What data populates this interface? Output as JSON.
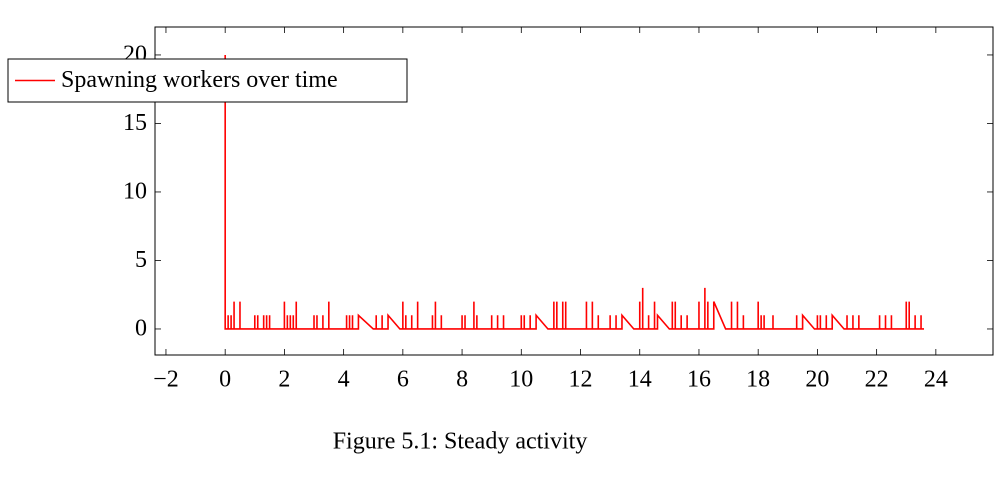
{
  "chart_data": {
    "type": "line",
    "caption": "Figure 5.1: Steady activity",
    "legend": "north west",
    "xlim": [
      -2.37,
      25.93
    ],
    "ylim": [
      -1.9,
      22.04
    ],
    "xticks": [
      {
        "value": -2,
        "label": "−2"
      },
      0,
      2,
      4,
      6,
      8,
      10,
      12,
      14,
      16,
      18,
      20,
      22,
      24
    ],
    "yticks": [
      0,
      5,
      10,
      15,
      20
    ],
    "x": [
      0,
      0,
      0.1,
      0.1,
      0.1,
      0.2,
      0.2,
      0.2,
      0.3,
      0.3,
      0.3,
      0.5,
      0.5,
      0.5,
      1,
      1,
      1,
      1.1,
      1.1,
      1.1,
      1.3,
      1.3,
      1.3,
      1.4,
      1.4,
      1.4,
      1.5,
      1.5,
      1.5,
      2,
      2,
      2,
      2.1,
      2.1,
      2.1,
      2.2,
      2.2,
      2.2,
      2.3,
      2.3,
      2.3,
      2.4,
      2.4,
      2.4,
      3,
      3,
      3,
      3.1,
      3.1,
      3.1,
      3.3,
      3.3,
      3.3,
      3.5,
      3.5,
      3.5,
      4.1,
      4.1,
      4.1,
      4.2,
      4.2,
      4.2,
      4.3,
      4.3,
      4.3,
      4.5,
      4.5,
      5.0,
      5.1,
      5.1,
      5.1,
      5.3,
      5.3,
      5.3,
      5.5,
      5.5,
      5.9,
      6,
      6,
      6,
      6.1,
      6.1,
      6.1,
      6.3,
      6.3,
      6.3,
      6.5,
      6.5,
      6.5,
      7,
      7,
      7,
      7.1,
      7.1,
      7.1,
      7.3,
      7.3,
      7.3,
      8,
      8,
      8,
      8.1,
      8.1,
      8.1,
      8.4,
      8.4,
      8.4,
      8.5,
      8.5,
      8.5,
      9,
      9,
      9,
      9.2,
      9.2,
      9.2,
      9.4,
      9.4,
      9.4,
      10,
      10,
      10,
      10.1,
      10.1,
      10.1,
      10.3,
      10.3,
      10.3,
      10.5,
      10.5,
      10.9,
      11.1,
      11.1,
      11.1,
      11.2,
      11.2,
      11.2,
      11.4,
      11.4,
      11.4,
      11.5,
      11.5,
      11.5,
      12.2,
      12.2,
      12.2,
      12.4,
      12.4,
      12.4,
      12.6,
      12.6,
      12.6,
      13,
      13,
      13,
      13.2,
      13.2,
      13.2,
      13.4,
      13.4,
      13.8,
      14,
      14,
      14,
      14.1,
      14.1,
      14.1,
      14.3,
      14.3,
      14.3,
      14.5,
      14.5,
      14.5,
      14.6,
      14.6,
      15.0,
      15.1,
      15.1,
      15.1,
      15.2,
      15.2,
      15.2,
      15.4,
      15.4,
      15.4,
      15.6,
      15.6,
      15.6,
      16,
      16,
      16,
      16.2,
      16.2,
      16.2,
      16.3,
      16.3,
      16.3,
      16.5,
      16.5,
      16.9,
      17.1,
      17.1,
      17.1,
      17.3,
      17.3,
      17.3,
      17.5,
      17.5,
      17.5,
      18,
      18,
      18,
      18.1,
      18.1,
      18.1,
      18.2,
      18.2,
      18.2,
      18.5,
      18.5,
      18.5,
      19.3,
      19.3,
      19.3,
      19.5,
      19.5,
      19.9,
      20,
      20,
      20,
      20.1,
      20.1,
      20.1,
      20.3,
      20.3,
      20.3,
      20.5,
      20.5,
      20.9,
      21,
      21,
      21,
      21.2,
      21.2,
      21.2,
      21.4,
      21.4,
      21.4,
      22.1,
      22.1,
      22.1,
      22.3,
      22.3,
      22.3,
      22.5,
      22.5,
      22.5,
      23,
      23,
      23,
      23.1,
      23.1,
      23.1,
      23.3,
      23.3,
      23.3,
      23.5,
      23.5,
      23.5,
      23.6
    ],
    "series": [
      {
        "name": "Spawning workers over time",
        "color": "#ff0000",
        "values": [
          20,
          0,
          0,
          1,
          0,
          0,
          1,
          0,
          0,
          2,
          0,
          0,
          2,
          0,
          0,
          1,
          0,
          0,
          1,
          0,
          0,
          1,
          0,
          0,
          1,
          0,
          0,
          1,
          0,
          0,
          2,
          0,
          0,
          1,
          0,
          0,
          1,
          0,
          0,
          1,
          0,
          0,
          2,
          0,
          0,
          1,
          0,
          0,
          1,
          0,
          0,
          1,
          0,
          0,
          2,
          0,
          0,
          1,
          0,
          0,
          1,
          0,
          0,
          1,
          0,
          0,
          1,
          0,
          0,
          1,
          0,
          0,
          1,
          0,
          0,
          1,
          0,
          0,
          2,
          0,
          0,
          1,
          0,
          0,
          1,
          0,
          0,
          2,
          0,
          0,
          1,
          0,
          0,
          2,
          0,
          0,
          1,
          0,
          0,
          1,
          0,
          0,
          1,
          0,
          0,
          2,
          0,
          0,
          1,
          0,
          0,
          1,
          0,
          0,
          1,
          0,
          0,
          1,
          0,
          0,
          1,
          0,
          0,
          1,
          0,
          0,
          1,
          0,
          0,
          1,
          0,
          0,
          2,
          0,
          0,
          2,
          0,
          0,
          2,
          0,
          0,
          2,
          0,
          0,
          2,
          0,
          0,
          2,
          0,
          0,
          1,
          0,
          0,
          1,
          0,
          0,
          1,
          0,
          0,
          1,
          0,
          0,
          2,
          0,
          0,
          3,
          0,
          0,
          1,
          0,
          0,
          2,
          0,
          0,
          1,
          0,
          0,
          2,
          0,
          0,
          2,
          0,
          0,
          1,
          0,
          0,
          1,
          0,
          0,
          2,
          0,
          0,
          3,
          0,
          0,
          2,
          0,
          0,
          2,
          0,
          0,
          2,
          0,
          0,
          2,
          0,
          0,
          1,
          0,
          0,
          2,
          0,
          0,
          1,
          0,
          0,
          1,
          0,
          0,
          1,
          0,
          0,
          1,
          0,
          0,
          1,
          0,
          0,
          1,
          0,
          0,
          1,
          0,
          0,
          1,
          0,
          0,
          1,
          0,
          0,
          1,
          0,
          0,
          1,
          0,
          0,
          1,
          0,
          0,
          1,
          0,
          0,
          1,
          0,
          0,
          1,
          0,
          0,
          2,
          0,
          0,
          2,
          0,
          0,
          1,
          0,
          0,
          1,
          0,
          0
        ]
      }
    ]
  }
}
